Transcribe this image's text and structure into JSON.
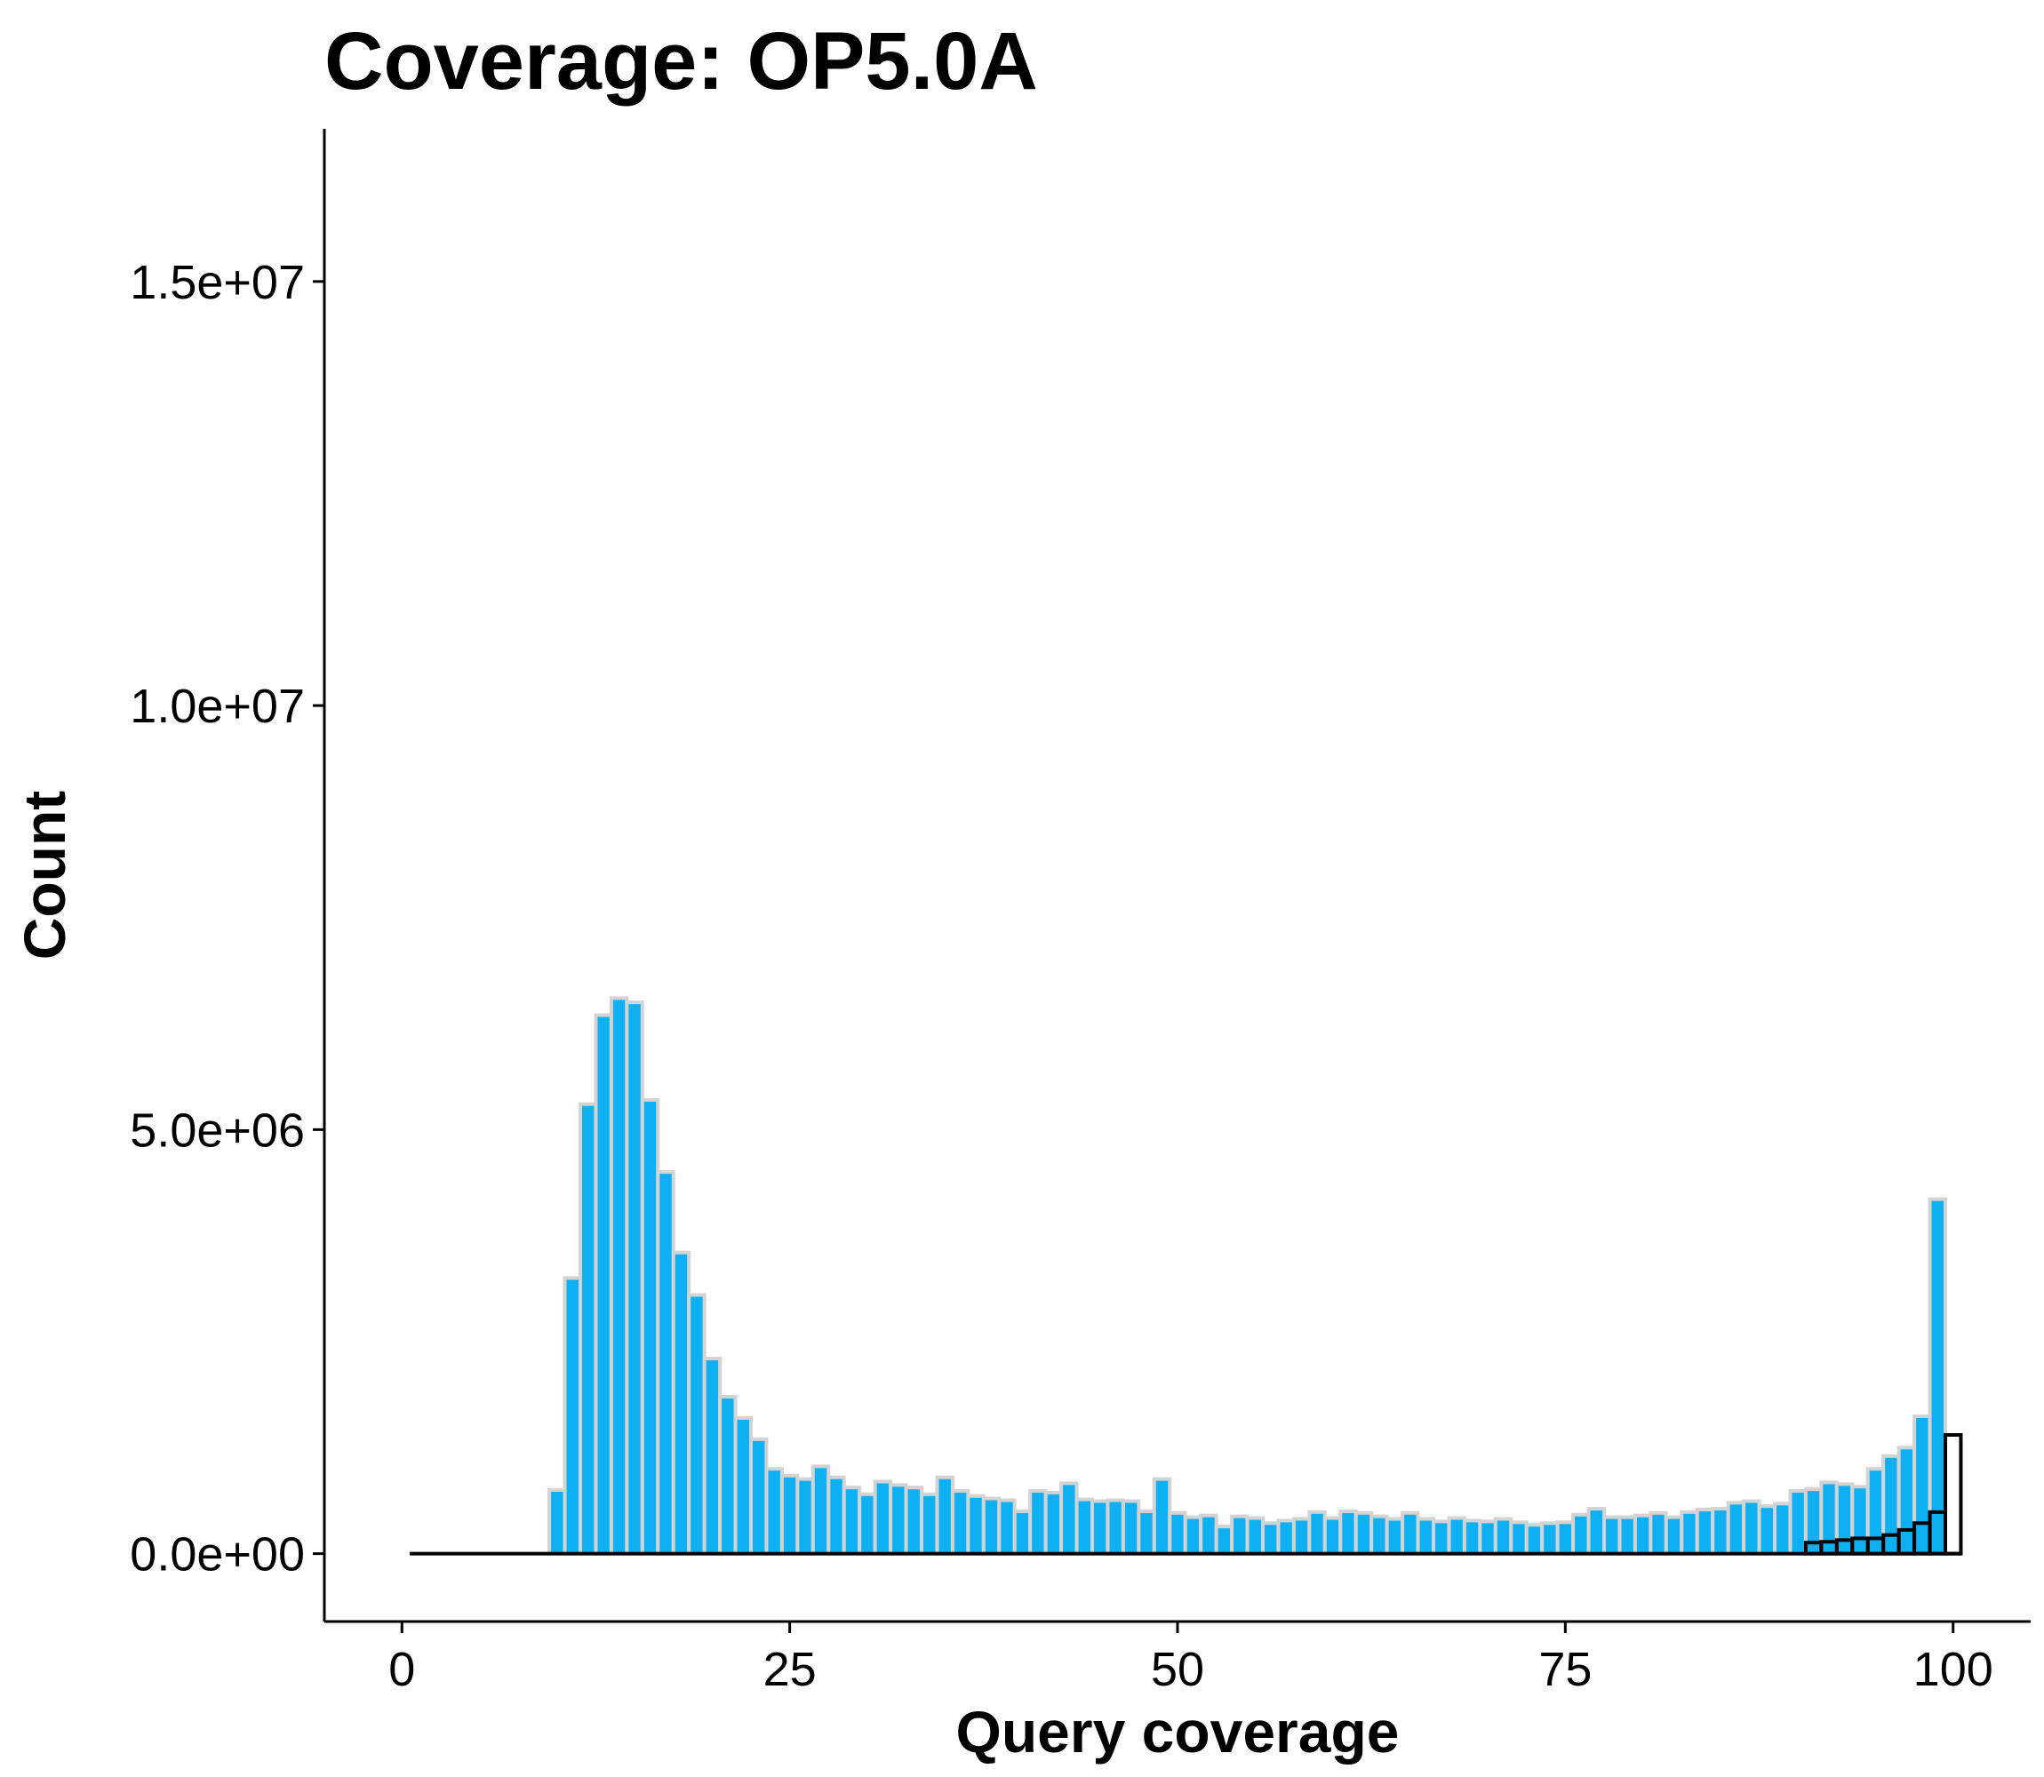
{
  "chart_data": {
    "type": "bar",
    "title": "Coverage: OP5.0A",
    "xlabel": "Query coverage",
    "ylabel": "Count",
    "xlim": [
      -5,
      105
    ],
    "ylim": [
      -800000,
      16800000
    ],
    "xticks": [
      {
        "value": 0,
        "label": "0"
      },
      {
        "value": 25,
        "label": "25"
      },
      {
        "value": 50,
        "label": "50"
      },
      {
        "value": 75,
        "label": "75"
      },
      {
        "value": 100,
        "label": "100"
      }
    ],
    "yticks": [
      {
        "value": 0,
        "label": "0.0e+00"
      },
      {
        "value": 5000000,
        "label": "5.0e+06"
      },
      {
        "value": 10000000,
        "label": "1.0e+07"
      },
      {
        "value": 15000000,
        "label": "1.5e+07"
      }
    ],
    "grid": false,
    "legend": "none",
    "colors": {
      "all_fill": "#0DB0F2",
      "all_stroke": "#D3D3D3",
      "subset_fill": "none",
      "subset_stroke": "#000000"
    },
    "series": [
      {
        "x": [
          1,
          2,
          3,
          4,
          5,
          6,
          7,
          8,
          9,
          10,
          11,
          12,
          13,
          14,
          15,
          16,
          17,
          18,
          19,
          20,
          21,
          22,
          23,
          24,
          25,
          26,
          27,
          28,
          29,
          30,
          31,
          32,
          33,
          34,
          35,
          36,
          37,
          38,
          39,
          40,
          41,
          42,
          43,
          44,
          45,
          46,
          47,
          48,
          49,
          50,
          51,
          52,
          53,
          54,
          55,
          56,
          57,
          58,
          59,
          60,
          61,
          62,
          63,
          64,
          65,
          66,
          67,
          68,
          69,
          70,
          71,
          72,
          73,
          74,
          75,
          76,
          77,
          78,
          79,
          80,
          81,
          82,
          83,
          84,
          85,
          86,
          87,
          88,
          89,
          90,
          91,
          92,
          93,
          94,
          95,
          96,
          97,
          98,
          99,
          100
        ],
        "values": [
          0,
          0,
          0,
          0,
          0,
          0,
          0,
          0,
          0,
          750000,
          3250000,
          5300000,
          6350000,
          6550000,
          6500000,
          5350000,
          4500000,
          3550000,
          3050000,
          2300000,
          1850000,
          1600000,
          1350000,
          1000000,
          920000,
          880000,
          1030000,
          900000,
          780000,
          700000,
          850000,
          810000,
          780000,
          700000,
          900000,
          740000,
          680000,
          650000,
          630000,
          500000,
          740000,
          720000,
          830000,
          640000,
          620000,
          630000,
          620000,
          500000,
          880000,
          480000,
          430000,
          450000,
          320000,
          440000,
          420000,
          360000,
          390000,
          410000,
          490000,
          420000,
          500000,
          480000,
          440000,
          410000,
          480000,
          410000,
          380000,
          420000,
          390000,
          380000,
          410000,
          370000,
          340000,
          360000,
          370000,
          460000,
          530000,
          430000,
          430000,
          450000,
          480000,
          430000,
          490000,
          520000,
          530000,
          600000,
          620000,
          560000,
          590000,
          740000,
          760000,
          840000,
          820000,
          790000,
          1000000,
          1150000,
          1250000,
          1620000,
          4180000,
          0
        ]
      },
      {
        "x": [
          91,
          92,
          93,
          94,
          95,
          96,
          97,
          98,
          99,
          100
        ],
        "values": [
          130000,
          140000,
          160000,
          180000,
          180000,
          220000,
          280000,
          360000,
          490000,
          1400000
        ]
      }
    ]
  }
}
